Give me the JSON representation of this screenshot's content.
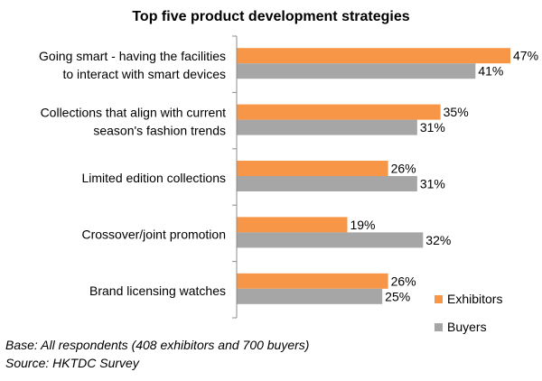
{
  "chart_data": {
    "type": "bar",
    "orientation": "horizontal",
    "title": "Top five product development strategies",
    "categories": [
      [
        "Going smart - having the facilities",
        "to interact with smart devices"
      ],
      [
        "Collections that align with current",
        "season's fashion trends"
      ],
      [
        "Limited edition collections"
      ],
      [
        "Crossover/joint promotion"
      ],
      [
        "Brand licensing watches"
      ]
    ],
    "series": [
      {
        "name": "Exhibitors",
        "color": "#F79646",
        "values": [
          47,
          35,
          26,
          19,
          26
        ]
      },
      {
        "name": "Buyers",
        "color": "#A6A6A6",
        "values": [
          41,
          31,
          31,
          32,
          25
        ]
      }
    ],
    "value_suffix": "%",
    "xlim": [
      0,
      50
    ],
    "grid": false,
    "legend_position": "bottom-right"
  },
  "notes": {
    "base": "Base: All respondents (408 exhibitors and 700 buyers)",
    "source": "Source: HKTDC Survey"
  }
}
